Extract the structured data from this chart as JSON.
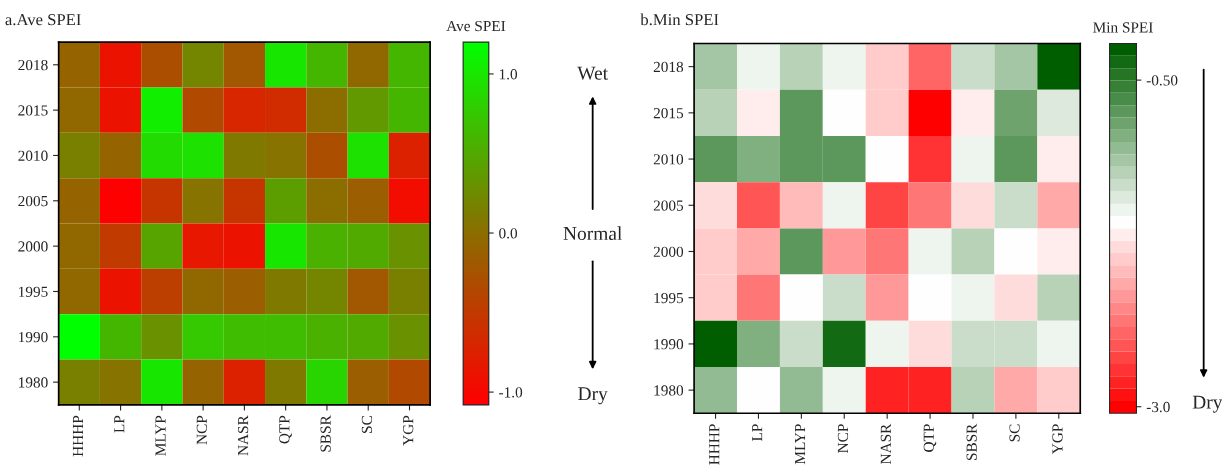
{
  "chart_data": [
    {
      "type": "heatmap",
      "title": "a.Ave SPEI",
      "clabel": "Ave SPEI",
      "categories": [
        "HHHP",
        "LP",
        "MLYP",
        "NCP",
        "NASR",
        "QTP",
        "SBSR",
        "SC",
        "YGP"
      ],
      "y_categories": [
        "2018",
        "2015",
        "2010",
        "2005",
        "2000",
        "1995",
        "1990",
        "1980"
      ],
      "cells": [
        [
          -0.1,
          -0.9,
          -0.3,
          0.2,
          -0.2,
          1.0,
          0.6,
          -0.05,
          0.6
        ],
        [
          -0.05,
          -0.9,
          1.05,
          -0.35,
          -0.7,
          -0.65,
          0.0,
          0.35,
          0.6
        ],
        [
          0.15,
          -0.1,
          0.9,
          0.95,
          0.1,
          0.05,
          -0.3,
          0.95,
          -0.75
        ],
        [
          -0.1,
          -1.08,
          -0.55,
          0.05,
          -0.55,
          0.4,
          0.0,
          -0.15,
          -0.95
        ],
        [
          -0.05,
          -0.5,
          0.45,
          -0.85,
          -0.9,
          1.0,
          0.55,
          0.5,
          0.3
        ],
        [
          -0.05,
          -0.9,
          -0.45,
          -0.05,
          -0.15,
          0.1,
          0.2,
          -0.2,
          0.15
        ],
        [
          1.2,
          0.6,
          0.3,
          0.75,
          0.65,
          0.65,
          0.55,
          0.5,
          0.3
        ],
        [
          0.15,
          0.05,
          1.0,
          -0.1,
          -0.75,
          0.1,
          0.85,
          -0.15,
          -0.35
        ]
      ],
      "clim": [
        -1.08,
        1.2
      ],
      "cticks": [
        {
          "value": 1.0,
          "label": "1.0"
        },
        {
          "value": 0.0,
          "label": "0.0"
        },
        {
          "value": -1.0,
          "label": "-1.0"
        }
      ],
      "annotations": [
        "Wet",
        "Normal",
        "Dry"
      ]
    },
    {
      "type": "heatmap",
      "title": "b.Min SPEI",
      "clabel": "Min SPEI",
      "categories": [
        "HHHP",
        "LP",
        "MLYP",
        "NCP",
        "NASR",
        "QTP",
        "SBSR",
        "SC",
        "YGP"
      ],
      "y_categories": [
        "2018",
        "2015",
        "2010",
        "2005",
        "2000",
        "1995",
        "1990",
        "1980"
      ],
      "cells": [
        [
          -1.1,
          -1.45,
          -1.2,
          -1.45,
          -1.9,
          -2.4,
          -1.3,
          -1.1,
          -0.3
        ],
        [
          -1.25,
          -1.7,
          -0.7,
          -1.58,
          -1.9,
          -3.0,
          -1.7,
          -0.85,
          -1.4
        ],
        [
          -0.7,
          -0.9,
          -0.7,
          -0.7,
          -1.58,
          -2.7,
          -1.45,
          -0.75,
          -1.7
        ],
        [
          -1.8,
          -2.5,
          -2.0,
          -1.45,
          -2.6,
          -2.3,
          -1.8,
          -1.35,
          -2.1
        ],
        [
          -1.9,
          -2.05,
          -0.75,
          -2.2,
          -2.3,
          -1.45,
          -1.2,
          -1.58,
          -1.7
        ],
        [
          -1.9,
          -2.3,
          -1.58,
          -1.35,
          -2.15,
          -1.58,
          -1.45,
          -1.8,
          -1.25
        ],
        [
          -0.25,
          -0.95,
          -1.35,
          -0.35,
          -1.45,
          -1.8,
          -1.35,
          -1.35,
          -1.45
        ],
        [
          -1.0,
          -1.58,
          -1.0,
          -1.45,
          -2.85,
          -2.85,
          -1.25,
          -2.05,
          -1.9
        ]
      ],
      "clim": [
        -3.05,
        -0.22
      ],
      "cticks": [
        {
          "value": -0.5,
          "label": "-0.50"
        },
        {
          "value": -3.0,
          "label": "-3.0"
        }
      ],
      "annotations": [
        "Dry"
      ]
    }
  ]
}
